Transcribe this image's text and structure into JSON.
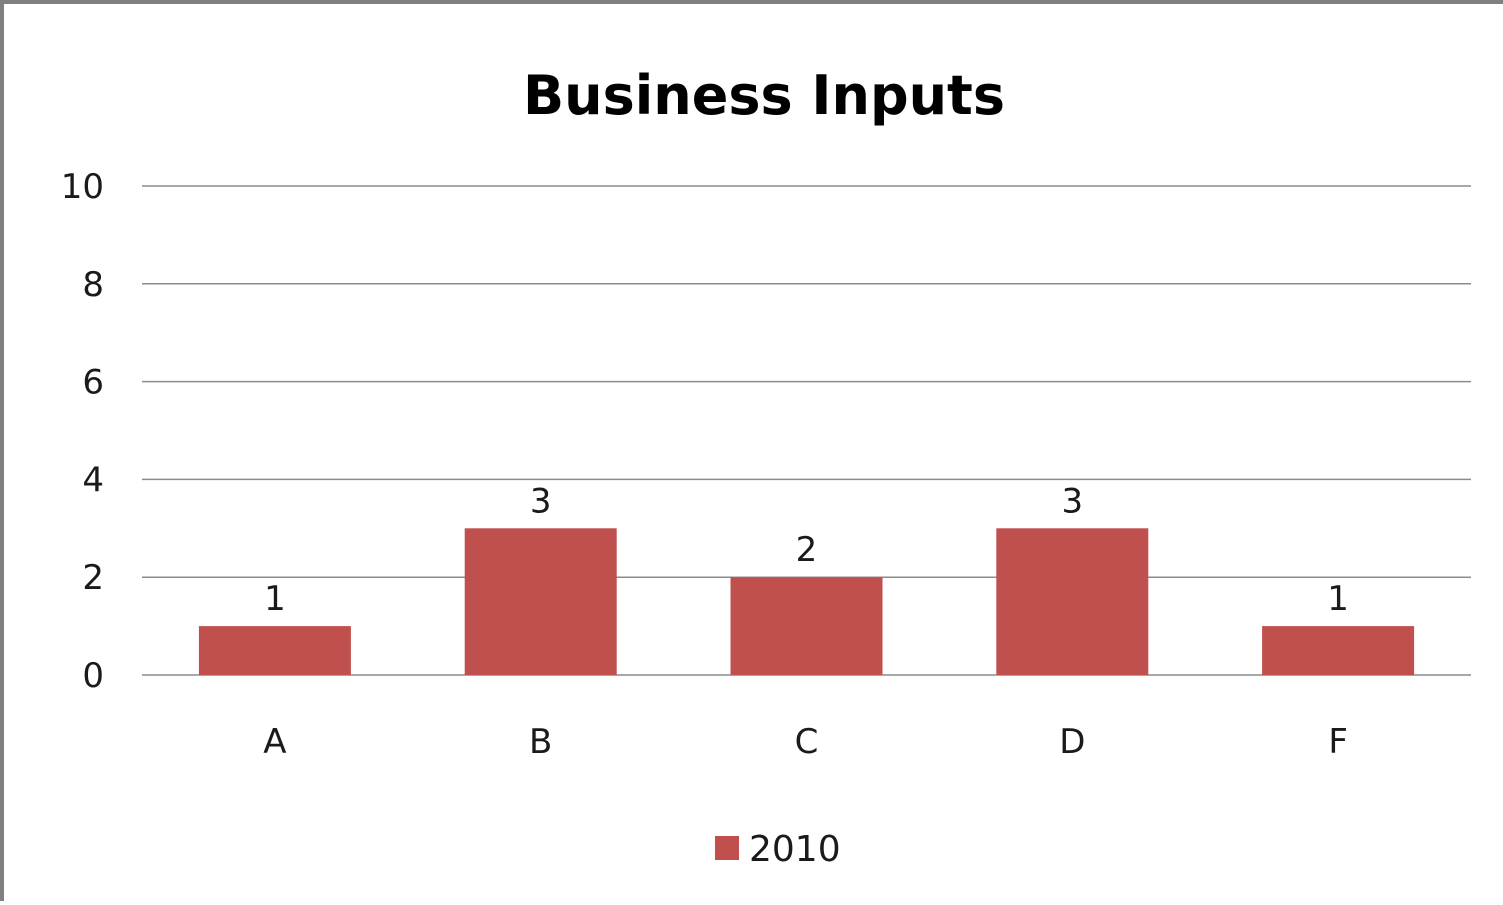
{
  "chart_data": {
    "type": "bar",
    "title": "Business Inputs",
    "xlabel": "",
    "ylabel": "",
    "categories": [
      "A",
      "B",
      "C",
      "D",
      "F"
    ],
    "series": [
      {
        "name": "2010",
        "values": [
          1,
          3,
          2,
          3,
          1
        ],
        "color": "#c0504d"
      }
    ],
    "ylim": [
      0,
      10
    ],
    "yticks": [
      "0",
      "2",
      "4",
      "6",
      "8",
      "10"
    ],
    "grid": true,
    "data_labels": true,
    "legend_position": "bottom"
  }
}
